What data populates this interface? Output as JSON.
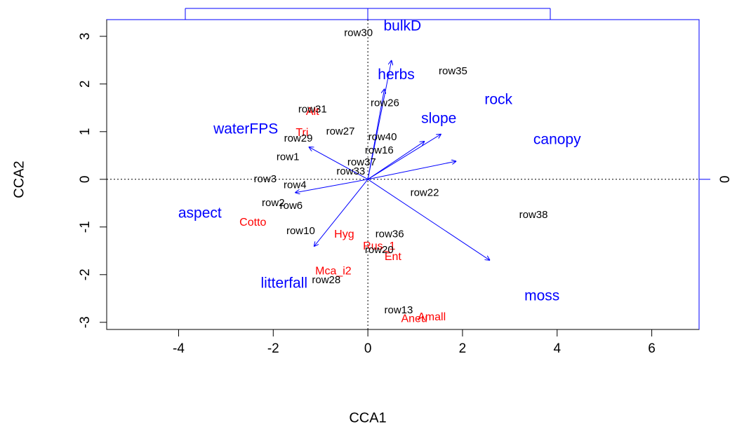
{
  "chart_data": {
    "type": "biplot",
    "x_label": "CCA1",
    "y_label": "CCA2",
    "xlim": [
      -5.52,
      7.0
    ],
    "ylim": [
      -3.15,
      3.35
    ],
    "xticks": [
      -4,
      -2,
      0,
      2,
      4,
      6
    ],
    "yticks": [
      -3,
      -2,
      -1,
      0,
      1,
      2,
      3
    ],
    "y2lim": [
      -3.15,
      3.35
    ],
    "y2ticks": [
      0
    ],
    "sites": {
      "color": "#000000",
      "labels": [
        "row30",
        "row35",
        "row13",
        "row28",
        "row38",
        "row10",
        "row20",
        "row22",
        "row31",
        "row29",
        "row27",
        "row3",
        "row6",
        "row2",
        "row37",
        "row40",
        "row36",
        "row16",
        "row26",
        "row4",
        "row33",
        "row1"
      ],
      "x": [
        -0.2,
        1.8,
        0.65,
        -0.88,
        3.5,
        -1.42,
        0.24,
        1.2,
        -1.17,
        -1.47,
        -0.58,
        -2.17,
        -1.62,
        -2.0,
        -0.13,
        0.31,
        0.46,
        0.24,
        0.36,
        -1.54,
        -0.36,
        -1.69
      ],
      "y": [
        3.06,
        2.26,
        -2.75,
        -2.12,
        -0.75,
        -1.09,
        -1.49,
        -0.29,
        1.46,
        0.85,
        1.0,
        0.0,
        -0.56,
        -0.5,
        0.35,
        0.88,
        -1.16,
        0.6,
        1.59,
        -0.13,
        0.16,
        0.46
      ]
    },
    "species": {
      "color": "#ff0000",
      "labels": [
        "Rus_1",
        "Ent",
        "Hyg",
        "Mca_i2",
        "Cotto",
        "Tri",
        "Alt",
        "Aneu",
        "Amall"
      ],
      "x": [
        0.24,
        0.53,
        -0.5,
        -0.73,
        -2.43,
        -1.39,
        -1.17,
        0.98,
        1.35
      ],
      "y": [
        -1.41,
        -1.63,
        -1.16,
        -1.93,
        -0.91,
        0.97,
        1.41,
        -2.93,
        -2.9
      ]
    },
    "biplot": {
      "color": "#0000ff",
      "labels": [
        "bulkD",
        "herbs",
        "rock",
        "slope",
        "canopy",
        "moss",
        "litterfall",
        "aspect",
        "waterFPS"
      ],
      "x": [
        0.5,
        0.35,
        1.55,
        1.2,
        1.87,
        2.58,
        -1.14,
        -1.54,
        -1.25
      ],
      "y": [
        2.5,
        1.9,
        0.95,
        0.8,
        0.38,
        -1.7,
        -1.41,
        -0.28,
        0.68
      ],
      "label_x": [
        0.73,
        0.6,
        2.76,
        1.5,
        4.0,
        3.68,
        -1.77,
        -3.55,
        -2.58
      ],
      "label_y": [
        3.2,
        2.18,
        1.66,
        1.26,
        0.82,
        -2.46,
        -2.19,
        -0.72,
        1.04
      ]
    }
  }
}
